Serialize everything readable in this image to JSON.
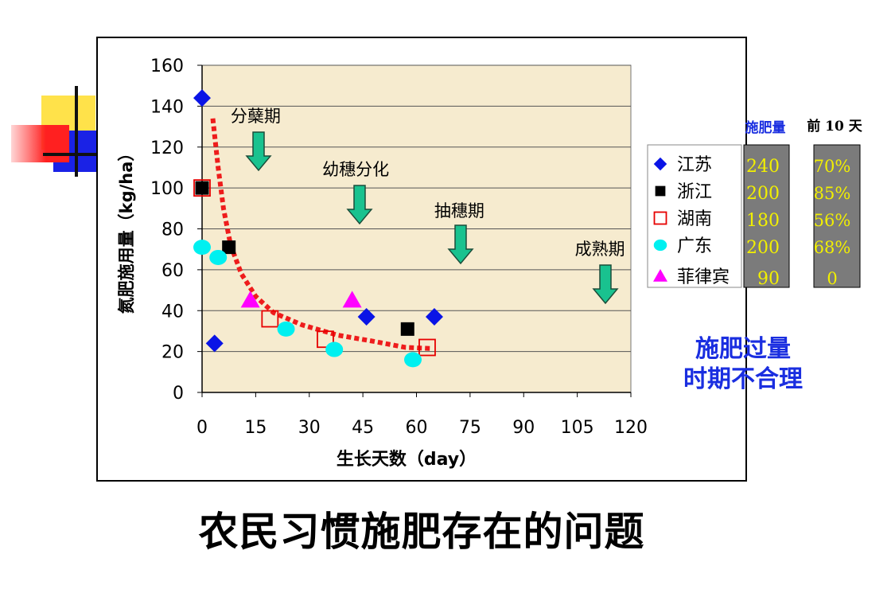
{
  "page_title": "农民习惯施肥存在的问题",
  "table": {
    "header_amount": "施肥量",
    "header_before": "前 10 天",
    "amounts": [
      "240",
      "200",
      "180",
      "200",
      "90"
    ],
    "percents": [
      "70%",
      "85%",
      "56%",
      "68%",
      "0"
    ]
  },
  "note": {
    "line1": "施肥过量",
    "line2": "时期不合理"
  },
  "colors": {
    "jiangsu": "#0a14e6",
    "zhejiang": "#000000",
    "hunan": "#e60000",
    "guangdong": "#00f0f0",
    "philippines": "#ff00ff",
    "trend": "#ee1c1c",
    "arrow": "#19c28f",
    "plot_bg": "#f6ebcf"
  },
  "chart_data": {
    "type": "scatter",
    "title": "",
    "xlabel": "生长天数（day）",
    "ylabel": "氮肥施用量（kg/ha）",
    "xlim": [
      0,
      120
    ],
    "ylim": [
      0,
      160
    ],
    "xticks": [
      0,
      15,
      30,
      45,
      60,
      75,
      90,
      105,
      120
    ],
    "yticks": [
      0,
      20,
      40,
      60,
      80,
      100,
      120,
      140,
      160
    ],
    "grid": "horizontal",
    "legend_position": "right",
    "series": [
      {
        "name": "江苏",
        "marker": "diamond",
        "points": [
          [
            0,
            144
          ],
          [
            3.5,
            24
          ],
          [
            46,
            37
          ],
          [
            65,
            37
          ]
        ]
      },
      {
        "name": "浙江",
        "marker": "square",
        "points": [
          [
            0,
            100
          ],
          [
            7.5,
            71
          ],
          [
            57.5,
            31
          ]
        ]
      },
      {
        "name": "湖南",
        "marker": "open-square",
        "points": [
          [
            0,
            100
          ],
          [
            19,
            36
          ],
          [
            34.5,
            26
          ],
          [
            63,
            22
          ]
        ]
      },
      {
        "name": "广东",
        "marker": "circle",
        "points": [
          [
            0,
            71
          ],
          [
            4.5,
            66
          ],
          [
            23.5,
            31
          ],
          [
            37,
            21
          ],
          [
            59,
            16
          ]
        ]
      },
      {
        "name": "菲律宾",
        "marker": "triangle",
        "points": [
          [
            13.5,
            45
          ],
          [
            42,
            45
          ]
        ]
      }
    ],
    "trend_line": [
      [
        3,
        134
      ],
      [
        4.5,
        110
      ],
      [
        6,
        90
      ],
      [
        8,
        72
      ],
      [
        11,
        58
      ],
      [
        15,
        47
      ],
      [
        20,
        39
      ],
      [
        28,
        33
      ],
      [
        38,
        28
      ],
      [
        48,
        25
      ],
      [
        57,
        22
      ],
      [
        64,
        21.5
      ]
    ],
    "annotations": [
      {
        "text": "分蘖期",
        "x": 15
      },
      {
        "text": "幼穗分化",
        "x": 43
      },
      {
        "text": "抽穗期",
        "x": 72
      },
      {
        "text": "成熟期",
        "x": 112
      }
    ]
  }
}
